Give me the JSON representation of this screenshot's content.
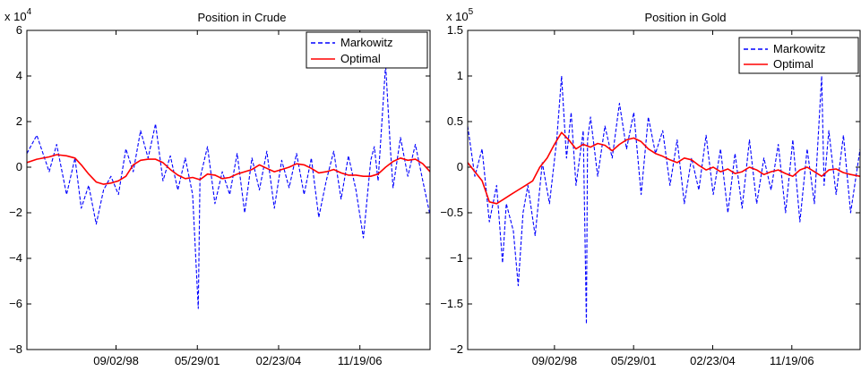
{
  "chart_data": [
    {
      "type": "line",
      "title": "Position in Crude",
      "scale_label_base": "x 10",
      "scale_label_exponent": "4",
      "ylim": [
        -80000,
        60000
      ],
      "yticks": [
        -80000,
        -60000,
        -40000,
        -20000,
        0,
        20000,
        40000,
        60000
      ],
      "ytick_labels": [
        "−8",
        "−6",
        "−4",
        "−2",
        "0",
        "2",
        "4",
        "6"
      ],
      "xlim": [
        "1995-09-01",
        "2009-03-31"
      ],
      "xticks": [
        "1998-09-02",
        "2001-05-29",
        "2004-02-23",
        "2006-11-19"
      ],
      "xtick_labels": [
        "09/02/98",
        "05/29/01",
        "02/23/04",
        "11/19/06"
      ],
      "legend_position": "top-right",
      "series": [
        {
          "name": "Markowitz",
          "color": "#0000ff",
          "style": "dashed",
          "x": [
            "1995-09-01",
            "1996-01-01",
            "1996-06-01",
            "1996-09-01",
            "1997-01-01",
            "1997-04-15",
            "1997-07-01",
            "1997-10-01",
            "1998-01-01",
            "1998-04-01",
            "1998-07-01",
            "1998-10-01",
            "1999-01-01",
            "1999-04-01",
            "1999-07-01",
            "1999-10-01",
            "2000-01-01",
            "2000-04-01",
            "2000-07-01",
            "2000-10-01",
            "2001-01-01",
            "2001-04-01",
            "2001-06-10",
            "2001-07-01",
            "2001-10-01",
            "2002-01-01",
            "2002-04-01",
            "2002-07-01",
            "2002-10-01",
            "2003-01-01",
            "2003-04-01",
            "2003-07-01",
            "2003-10-01",
            "2004-01-01",
            "2004-04-01",
            "2004-07-01",
            "2004-10-01",
            "2005-01-01",
            "2005-04-01",
            "2005-07-01",
            "2005-10-01",
            "2006-01-01",
            "2006-04-01",
            "2006-07-01",
            "2006-10-01",
            "2007-01-01",
            "2007-04-01",
            "2007-05-15",
            "2007-07-01",
            "2007-10-01",
            "2007-12-01",
            "2008-01-01",
            "2008-04-01",
            "2008-07-01",
            "2008-10-01",
            "2009-01-01",
            "2009-03-31"
          ],
          "y": [
            6000,
            14000,
            -2000,
            10000,
            -12000,
            4000,
            -18000,
            -8000,
            -25000,
            -10000,
            -4000,
            -12000,
            8000,
            -2000,
            16000,
            4000,
            19000,
            -6000,
            5000,
            -10000,
            4000,
            -12000,
            -62000,
            -5000,
            9000,
            -16000,
            -2000,
            -12000,
            6000,
            -20000,
            4000,
            -10000,
            7000,
            -18000,
            3000,
            -9000,
            6000,
            -12000,
            4000,
            -22000,
            -6000,
            7000,
            -14000,
            5000,
            -10000,
            -31000,
            3000,
            9000,
            -6000,
            45000,
            7000,
            -9000,
            13000,
            -4000,
            10000,
            -6000,
            -21000
          ]
        },
        {
          "name": "Optimal",
          "color": "#ff0000",
          "style": "solid",
          "x": [
            "1995-09-01",
            "1996-01-01",
            "1996-06-01",
            "1996-09-01",
            "1997-01-01",
            "1997-04-15",
            "1997-07-01",
            "1997-10-01",
            "1998-01-01",
            "1998-04-01",
            "1998-07-01",
            "1998-10-01",
            "1999-01-01",
            "1999-04-01",
            "1999-07-01",
            "1999-10-01",
            "2000-01-01",
            "2000-04-01",
            "2000-07-01",
            "2000-10-01",
            "2001-01-01",
            "2001-04-01",
            "2001-07-01",
            "2001-10-01",
            "2002-01-01",
            "2002-04-01",
            "2002-07-01",
            "2002-10-01",
            "2003-01-01",
            "2003-04-01",
            "2003-07-01",
            "2003-10-01",
            "2004-01-01",
            "2004-04-01",
            "2004-07-01",
            "2004-10-01",
            "2005-01-01",
            "2005-04-01",
            "2005-07-01",
            "2005-10-01",
            "2006-01-01",
            "2006-04-01",
            "2006-07-01",
            "2006-10-01",
            "2007-01-01",
            "2007-04-01",
            "2007-07-01",
            "2007-10-01",
            "2008-01-01",
            "2008-04-01",
            "2008-07-01",
            "2008-10-01",
            "2009-01-01",
            "2009-03-31"
          ],
          "y": [
            2000,
            3500,
            4500,
            5500,
            5000,
            4000,
            1000,
            -3000,
            -6500,
            -7500,
            -7000,
            -6000,
            -4000,
            1000,
            3000,
            3500,
            3500,
            2000,
            -1000,
            -3500,
            -5000,
            -4500,
            -5500,
            -3000,
            -3500,
            -5000,
            -4500,
            -3000,
            -2000,
            -1000,
            1000,
            -500,
            -2000,
            -1000,
            0,
            1500,
            1000,
            -500,
            -2500,
            -2000,
            -1000,
            -2500,
            -3500,
            -3500,
            -4000,
            -4000,
            -3000,
            0,
            2500,
            4000,
            3000,
            3500,
            1500,
            -2000
          ]
        }
      ]
    },
    {
      "type": "line",
      "title": "Position in Gold",
      "scale_label_base": "x 10",
      "scale_label_exponent": "5",
      "ylim": [
        -200000,
        150000
      ],
      "yticks": [
        -200000,
        -150000,
        -100000,
        -50000,
        0,
        50000,
        100000,
        150000
      ],
      "ytick_labels": [
        "−2",
        "−1.5",
        "−1",
        "−0.5",
        "0",
        "0.5",
        "1",
        "1.5"
      ],
      "xlim": [
        "1995-09-01",
        "2009-03-31"
      ],
      "xticks": [
        "1998-09-02",
        "2001-05-29",
        "2004-02-23",
        "2006-11-19"
      ],
      "xtick_labels": [
        "09/02/98",
        "05/29/01",
        "02/23/04",
        "11/19/06"
      ],
      "legend_position": "top-right",
      "series": [
        {
          "name": "Markowitz",
          "color": "#0000ff",
          "style": "dashed",
          "x": [
            "1995-09-01",
            "1995-12-01",
            "1996-03-01",
            "1996-06-01",
            "1996-09-01",
            "1996-11-15",
            "1997-01-01",
            "1997-04-01",
            "1997-06-01",
            "1997-08-01",
            "1997-10-01",
            "1998-01-01",
            "1998-04-01",
            "1998-07-01",
            "1998-10-01",
            "1998-12-01",
            "1999-02-01",
            "1999-04-01",
            "1999-06-01",
            "1999-09-01",
            "1999-10-10",
            "1999-10-25",
            "1999-12-01",
            "2000-03-01",
            "2000-06-01",
            "2000-09-01",
            "2000-12-01",
            "2001-03-01",
            "2001-06-01",
            "2001-09-01",
            "2001-12-01",
            "2002-03-01",
            "2002-06-01",
            "2002-09-01",
            "2002-12-01",
            "2003-03-01",
            "2003-06-01",
            "2003-09-01",
            "2003-12-01",
            "2004-03-01",
            "2004-06-01",
            "2004-09-01",
            "2004-12-01",
            "2005-03-01",
            "2005-06-01",
            "2005-09-01",
            "2005-12-01",
            "2006-03-01",
            "2006-06-01",
            "2006-09-01",
            "2006-12-01",
            "2007-03-01",
            "2007-06-01",
            "2007-09-01",
            "2007-12-01",
            "2008-01-01",
            "2008-03-01",
            "2008-06-01",
            "2008-09-01",
            "2008-12-01",
            "2009-03-31"
          ],
          "y": [
            45000,
            -10000,
            20000,
            -60000,
            -20000,
            -105000,
            -40000,
            -70000,
            -130000,
            -50000,
            -20000,
            -75000,
            5000,
            -40000,
            30000,
            100000,
            10000,
            60000,
            -20000,
            40000,
            -172000,
            30000,
            55000,
            -10000,
            45000,
            10000,
            70000,
            20000,
            60000,
            -30000,
            55000,
            15000,
            40000,
            -20000,
            30000,
            -40000,
            10000,
            -25000,
            35000,
            -30000,
            20000,
            -50000,
            15000,
            -45000,
            30000,
            -40000,
            10000,
            -25000,
            25000,
            -50000,
            30000,
            -60000,
            20000,
            -40000,
            100000,
            -20000,
            40000,
            -30000,
            35000,
            -50000,
            20000
          ]
        },
        {
          "name": "Optimal",
          "color": "#ff0000",
          "style": "solid",
          "x": [
            "1995-09-01",
            "1995-12-01",
            "1996-03-01",
            "1996-06-01",
            "1996-09-01",
            "1996-12-01",
            "1997-03-01",
            "1997-06-01",
            "1997-09-01",
            "1997-12-01",
            "1998-03-01",
            "1998-06-01",
            "1998-09-01",
            "1998-12-01",
            "1999-03-01",
            "1999-06-01",
            "1999-09-01",
            "1999-12-01",
            "2000-03-01",
            "2000-06-01",
            "2000-09-01",
            "2000-12-01",
            "2001-03-01",
            "2001-06-01",
            "2001-09-01",
            "2001-12-01",
            "2002-03-01",
            "2002-06-01",
            "2002-09-01",
            "2002-12-01",
            "2003-03-01",
            "2003-06-01",
            "2003-09-01",
            "2003-12-01",
            "2004-03-01",
            "2004-06-01",
            "2004-09-01",
            "2004-12-01",
            "2005-03-01",
            "2005-06-01",
            "2005-09-01",
            "2005-12-01",
            "2006-03-01",
            "2006-06-01",
            "2006-09-01",
            "2006-12-01",
            "2007-03-01",
            "2007-06-01",
            "2007-09-01",
            "2007-12-01",
            "2008-03-01",
            "2008-06-01",
            "2008-09-01",
            "2008-12-01",
            "2009-03-31"
          ],
          "y": [
            5000,
            -5000,
            -15000,
            -38000,
            -40000,
            -35000,
            -30000,
            -25000,
            -20000,
            -15000,
            0,
            10000,
            25000,
            38000,
            30000,
            20000,
            25000,
            22000,
            26000,
            24000,
            18000,
            25000,
            30000,
            32000,
            28000,
            20000,
            15000,
            12000,
            8000,
            5000,
            10000,
            8000,
            2000,
            -3000,
            0,
            -5000,
            -2000,
            -7000,
            -5000,
            0,
            -3000,
            -8000,
            -5000,
            -3000,
            -7000,
            -10000,
            -3000,
            0,
            -5000,
            -10000,
            -3000,
            -2000,
            -6000,
            -8000,
            -10000
          ]
        }
      ]
    }
  ]
}
